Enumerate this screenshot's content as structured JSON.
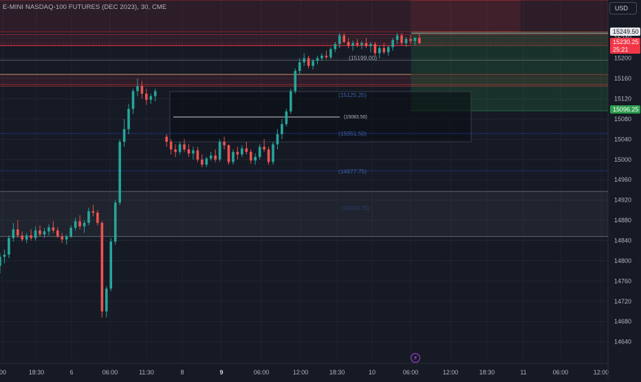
{
  "header": {
    "title": "E-MINI NASDAQ-100 FUTURES (DEC 2023), 30, CME",
    "currency_button": "USD"
  },
  "price_tags": {
    "last_close": "15249.50",
    "current_price": "15230.25",
    "countdown": "25:21",
    "target_price": "15096.25"
  },
  "bolt_icon": "⚡",
  "colors": {
    "background": "#161a25",
    "up": "#26a69a",
    "down": "#ef5350",
    "zone_red": "#f23645",
    "zone_green": "#2e9f4f"
  },
  "chart_data": {
    "type": "candlestick",
    "title": "E-MINI NASDAQ-100 FUTURES (DEC 2023), 30, CME",
    "ylim": [
      14615,
      15315
    ],
    "y_ticks": [
      14640,
      14680,
      14720,
      14760,
      14800,
      14840,
      14880,
      14920,
      14960,
      15000,
      15040,
      15080,
      15120,
      15160,
      15200,
      15240
    ],
    "x_ticks": [
      "00",
      "18:30",
      "6",
      "06:00",
      "11:30",
      "8",
      "9",
      "06:00",
      "12:00",
      "18:30",
      "10",
      "06:00",
      "12:00",
      "18:30",
      "11",
      "06:00",
      "12:00"
    ],
    "grid": true,
    "candles": [
      [
        14790,
        14815,
        14775,
        14808
      ],
      [
        14808,
        14822,
        14795,
        14812
      ],
      [
        14812,
        14850,
        14805,
        14845
      ],
      [
        14845,
        14875,
        14838,
        14862
      ],
      [
        14862,
        14880,
        14845,
        14850
      ],
      [
        14850,
        14858,
        14838,
        14842
      ],
      [
        14842,
        14855,
        14835,
        14850
      ],
      [
        14850,
        14862,
        14840,
        14845
      ],
      [
        14845,
        14868,
        14840,
        14860
      ],
      [
        14860,
        14870,
        14848,
        14852
      ],
      [
        14852,
        14865,
        14845,
        14858
      ],
      [
        14858,
        14872,
        14850,
        14866
      ],
      [
        14866,
        14878,
        14855,
        14860
      ],
      [
        14860,
        14866,
        14845,
        14848
      ],
      [
        14848,
        14855,
        14835,
        14842
      ],
      [
        14842,
        14852,
        14832,
        14848
      ],
      [
        14848,
        14870,
        14845,
        14865
      ],
      [
        14865,
        14885,
        14860,
        14878
      ],
      [
        14878,
        14890,
        14862,
        14868
      ],
      [
        14868,
        14880,
        14855,
        14875
      ],
      [
        14875,
        14905,
        14870,
        14898
      ],
      [
        14898,
        14910,
        14888,
        14895
      ],
      [
        14895,
        14900,
        14870,
        14875
      ],
      [
        14875,
        14878,
        14688,
        14700
      ],
      [
        14700,
        14750,
        14688,
        14745
      ],
      [
        14745,
        14845,
        14740,
        14838
      ],
      [
        14838,
        14920,
        14832,
        14915
      ],
      [
        14915,
        15040,
        14910,
        15035
      ],
      [
        15035,
        15080,
        15025,
        15060
      ],
      [
        15060,
        15110,
        15050,
        15100
      ],
      [
        15100,
        15140,
        15090,
        15135
      ],
      [
        15135,
        15160,
        15125,
        15145
      ],
      [
        15145,
        15155,
        15120,
        15130
      ],
      [
        15130,
        15140,
        15108,
        15118
      ],
      [
        15118,
        15130,
        15110,
        15125
      ],
      [
        15125,
        15140,
        15115,
        15135
      ],
      [
        15045,
        15050,
        15025,
        15035
      ],
      [
        15035,
        15040,
        15010,
        15020
      ],
      [
        15020,
        15030,
        15005,
        15015
      ],
      [
        15015,
        15035,
        15010,
        15030
      ],
      [
        15030,
        15040,
        15015,
        15020
      ],
      [
        15020,
        15030,
        15005,
        15012
      ],
      [
        15012,
        15025,
        15000,
        15018
      ],
      [
        15018,
        15025,
        14995,
        15000
      ],
      [
        15000,
        15010,
        14985,
        14990
      ],
      [
        14990,
        15005,
        14985,
        15002
      ],
      [
        15002,
        15015,
        14998,
        15008
      ],
      [
        15008,
        15020,
        14995,
        15000
      ],
      [
        15000,
        15040,
        14995,
        15035
      ],
      [
        15035,
        15045,
        15020,
        15028
      ],
      [
        15028,
        15030,
        14990,
        14995
      ],
      [
        14995,
        15020,
        14990,
        15015
      ],
      [
        15015,
        15025,
        15000,
        15010
      ],
      [
        15010,
        15028,
        15005,
        15022
      ],
      [
        15022,
        15035,
        15010,
        15015
      ],
      [
        15015,
        15020,
        14992,
        14998
      ],
      [
        14998,
        15012,
        14990,
        15005
      ],
      [
        15005,
        15030,
        15000,
        15025
      ],
      [
        15025,
        15040,
        15015,
        15020
      ],
      [
        15020,
        15025,
        14990,
        14995
      ],
      [
        14995,
        15035,
        14990,
        15030
      ],
      [
        15030,
        15060,
        15020,
        15050
      ],
      [
        15050,
        15080,
        15040,
        15070
      ],
      [
        15070,
        15100,
        15065,
        15095
      ],
      [
        15095,
        15140,
        15090,
        15135
      ],
      [
        15135,
        15180,
        15130,
        15175
      ],
      [
        15175,
        15200,
        15168,
        15192
      ],
      [
        15192,
        15210,
        15185,
        15200
      ],
      [
        15200,
        15205,
        15180,
        15185
      ],
      [
        15185,
        15198,
        15178,
        15195
      ],
      [
        15195,
        15205,
        15188,
        15200
      ],
      [
        15200,
        15210,
        15195,
        15205
      ],
      [
        15205,
        15215,
        15198,
        15202
      ],
      [
        15202,
        15222,
        15198,
        15218
      ],
      [
        15218,
        15232,
        15212,
        15228
      ],
      [
        15228,
        15250,
        15220,
        15245
      ],
      [
        15245,
        15250,
        15230,
        15232
      ],
      [
        15232,
        15240,
        15220,
        15225
      ],
      [
        15225,
        15235,
        15215,
        15230
      ],
      [
        15230,
        15238,
        15222,
        15226
      ],
      [
        15226,
        15234,
        15218,
        15230
      ],
      [
        15230,
        15240,
        15220,
        15224
      ],
      [
        15224,
        15232,
        15212,
        15228
      ],
      [
        15228,
        15232,
        15205,
        15210
      ],
      [
        15210,
        15225,
        15200,
        15220
      ],
      [
        15220,
        15230,
        15208,
        15212
      ],
      [
        15212,
        15225,
        15205,
        15222
      ],
      [
        15222,
        15240,
        15215,
        15236
      ],
      [
        15236,
        15250,
        15228,
        15245
      ],
      [
        15245,
        15250,
        15225,
        15230
      ],
      [
        15230,
        15242,
        15222,
        15238
      ],
      [
        15238,
        15246,
        15228,
        15234
      ],
      [
        15234,
        15242,
        15225,
        15240
      ],
      [
        15240,
        15248,
        15228,
        15230
      ]
    ],
    "levels": [
      {
        "label": "(15199.00)",
        "value": 15199.0
      },
      {
        "label": "(15125.25)",
        "value": 15125.25
      },
      {
        "label": "(15083.50)",
        "value": 15083.5
      },
      {
        "label": "(15051.50)",
        "value": 15051.5
      },
      {
        "label": "(14977.75)",
        "value": 14977.75
      },
      {
        "label": "(14906.75)",
        "value": 14906.75
      }
    ],
    "zones": [
      {
        "name": "supply-zone-upper",
        "color": "red",
        "y1": 15315,
        "y2": 15252
      },
      {
        "name": "supply-zone-lower",
        "color": "red",
        "y1": 15247,
        "y2": 15225
      },
      {
        "name": "resistance-zone",
        "color": "red",
        "y1": 15168,
        "y2": 15148
      },
      {
        "name": "demand-zone",
        "color": "grey",
        "y1": 14937,
        "y2": 14848
      },
      {
        "name": "long-position-target",
        "color": "green",
        "y1": 15252,
        "y2": 15096.25
      },
      {
        "name": "long-position-stop",
        "color": "red",
        "y1": 15315,
        "y2": 15252
      }
    ]
  }
}
